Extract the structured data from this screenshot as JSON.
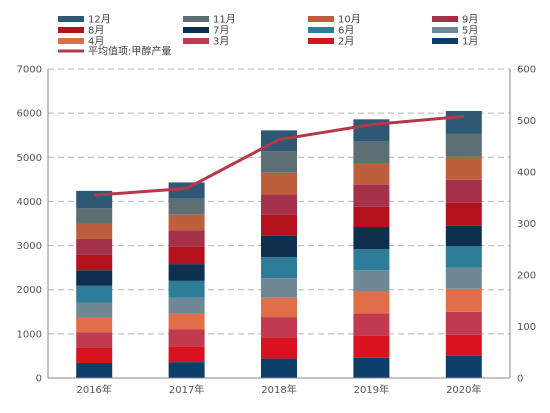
{
  "chart_data": {
    "type": "bar",
    "stacked": true,
    "categories": [
      "2016年",
      "2017年",
      "2018年",
      "2019年",
      "2020年"
    ],
    "series": [
      {
        "name": "1月",
        "color": "#0e3f6b",
        "values": [
          340,
          360,
          440,
          460,
          500
        ]
      },
      {
        "name": "2月",
        "color": "#d8121e",
        "values": [
          340,
          360,
          480,
          500,
          480
        ]
      },
      {
        "name": "3月",
        "color": "#c23a4f",
        "values": [
          350,
          380,
          460,
          500,
          520
        ]
      },
      {
        "name": "4月",
        "color": "#e06e48",
        "values": [
          340,
          360,
          440,
          500,
          520
        ]
      },
      {
        "name": "5月",
        "color": "#6f8895",
        "values": [
          340,
          360,
          440,
          480,
          480
        ]
      },
      {
        "name": "6月",
        "color": "#2d7d99",
        "values": [
          380,
          380,
          480,
          480,
          490
        ]
      },
      {
        "name": "7月",
        "color": "#0f2f4f",
        "values": [
          350,
          380,
          480,
          500,
          460
        ]
      },
      {
        "name": "8月",
        "color": "#b3121c",
        "values": [
          350,
          390,
          480,
          460,
          520
        ]
      },
      {
        "name": "9月",
        "color": "#a4304a",
        "values": [
          360,
          370,
          460,
          500,
          520
        ]
      },
      {
        "name": "10月",
        "color": "#bd5e3c",
        "values": [
          350,
          360,
          490,
          490,
          520
        ]
      },
      {
        "name": "11月",
        "color": "#5d6e75",
        "values": [
          350,
          360,
          490,
          490,
          520
        ]
      },
      {
        "name": "12月",
        "color": "#2e5873",
        "values": [
          390,
          370,
          470,
          500,
          520
        ]
      }
    ],
    "line_series": {
      "name": "平均值项:甲醇产量",
      "color": "#b4384a",
      "axis": "right",
      "values": [
        355,
        368,
        463,
        492,
        508
      ]
    },
    "y_left": {
      "min": 0,
      "max": 7000,
      "ticks": [
        0,
        1000,
        2000,
        3000,
        4000,
        5000,
        6000,
        7000
      ]
    },
    "y_right": {
      "min": 0,
      "max": 600,
      "ticks": [
        0,
        100,
        200,
        300,
        400,
        500,
        600
      ]
    },
    "grid": true,
    "legend_position": "top"
  }
}
